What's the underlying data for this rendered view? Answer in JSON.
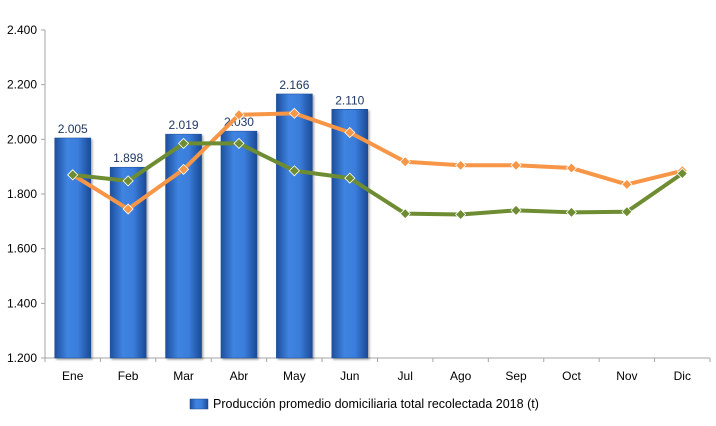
{
  "chart_data": {
    "type": "bar",
    "categories": [
      "Ene",
      "Feb",
      "Mar",
      "Abr",
      "May",
      "Jun",
      "Jul",
      "Ago",
      "Sep",
      "Oct",
      "Nov",
      "Dic"
    ],
    "ylim": [
      1200,
      2400
    ],
    "yticks": [
      1200,
      1400,
      1600,
      1800,
      2000,
      2200,
      2400
    ],
    "ytick_labels": [
      "1.200",
      "1.400",
      "1.600",
      "1.800",
      "2.000",
      "2.200",
      "2.400"
    ],
    "grid": false,
    "legend_position": "bottom",
    "bar_series": {
      "name": "Producción promedio domiciliaria total recolectada 2018 (t)",
      "values": [
        2005,
        1898,
        2019,
        2030,
        2166,
        2110
      ],
      "labels": [
        "2.005",
        "1.898",
        "2.019",
        "2.030",
        "2.166",
        "2.110"
      ],
      "color": "#2E6FD3"
    },
    "line_series": [
      {
        "values": [
          1870,
          1745,
          1890,
          2090,
          2095,
          2025,
          1918,
          1905,
          1905,
          1895,
          1835,
          1885
        ],
        "color": "#F79646"
      },
      {
        "values": [
          1870,
          1848,
          1985,
          1985,
          1885,
          1858,
          1728,
          1725,
          1740,
          1733,
          1735,
          1875
        ],
        "color": "#6E8C32"
      }
    ]
  }
}
